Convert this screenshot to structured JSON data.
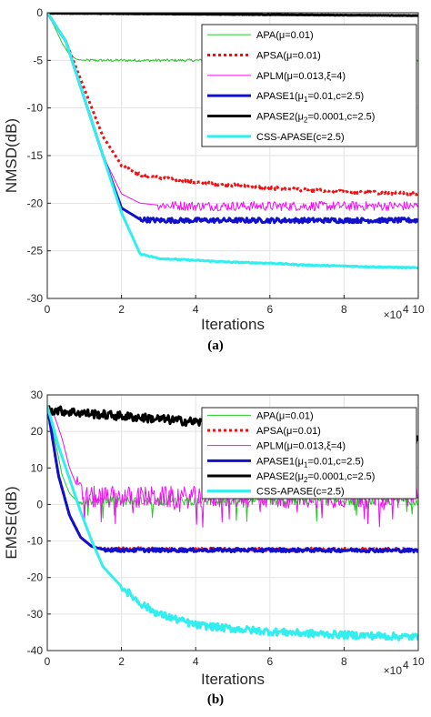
{
  "chart_data": [
    {
      "type": "line",
      "caption": "(a)",
      "xlabel": "Iterations",
      "ylabel": "NMSD(dB)",
      "x_multiplier": "×10",
      "x_multiplier_exp": "4",
      "xlim": [
        0,
        10
      ],
      "ylim": [
        -30,
        0
      ],
      "xticks": [
        "0",
        "2",
        "4",
        "6",
        "8",
        "10"
      ],
      "yticks": [
        "0",
        "-5",
        "-10",
        "-15",
        "-20",
        "-25",
        "-30"
      ],
      "grid": true,
      "legend_position": "top-right",
      "series": [
        {
          "name": "APA(μ=0.01)",
          "legend": {
            "pre": "APA(μ=0.01)"
          },
          "color": "#22cc22",
          "style": "solid",
          "width": 1,
          "x": [
            0,
            0.2,
            0.4,
            0.6,
            0.8,
            1.0,
            2,
            4,
            6,
            8,
            10
          ],
          "y": [
            0,
            -1.5,
            -3.2,
            -4.4,
            -4.9,
            -5.0,
            -5.0,
            -5.0,
            -5.0,
            -5.0,
            -5.0
          ]
        },
        {
          "name": "APSA(μ=0.01)",
          "legend": {
            "pre": "APSA(μ=0.01)"
          },
          "color": "#ee1111",
          "style": "dotted",
          "width": 3,
          "x": [
            0,
            0.5,
            1.0,
            1.5,
            2.0,
            2.5,
            3,
            4,
            5,
            6,
            7,
            8,
            9,
            10
          ],
          "y": [
            0,
            -3,
            -8,
            -13,
            -16,
            -17,
            -17.3,
            -17.8,
            -18.1,
            -18.4,
            -18.6,
            -18.8,
            -18.9,
            -19.0
          ]
        },
        {
          "name": "APLM(μ=0.013,ξ=4)",
          "legend": {
            "pre": "APLM(μ=0.013,ξ=4)"
          },
          "color": "#ee11ee",
          "style": "solid",
          "width": 1,
          "x": [
            0,
            0.5,
            1.0,
            1.5,
            2.0,
            2.5,
            3,
            4,
            6,
            8,
            10
          ],
          "y": [
            0,
            -3,
            -9,
            -15,
            -19,
            -20,
            -20.2,
            -20.3,
            -20.3,
            -20.3,
            -20.3
          ]
        },
        {
          "name": "APASE1(μ1=0.01,c=2.5)",
          "legend": {
            "pre": "APASE1(μ",
            "sub": "1",
            "post": "=0.01,c=2.5)"
          },
          "color": "#1111cc",
          "style": "solid",
          "width": 3,
          "x": [
            0,
            0.5,
            1.0,
            1.5,
            2.0,
            2.5,
            3,
            4,
            6,
            8,
            10
          ],
          "y": [
            0,
            -3,
            -9,
            -15,
            -20.5,
            -21.7,
            -21.8,
            -21.8,
            -21.8,
            -21.8,
            -21.8
          ]
        },
        {
          "name": "APASE2(μ2=0.0001,c=2.5)",
          "legend": {
            "pre": "APASE2(μ",
            "sub": "2",
            "post": "=0.0001,c=2.5)"
          },
          "color": "#000000",
          "style": "solid",
          "width": 3,
          "x": [
            0,
            2,
            4,
            6,
            8,
            10
          ],
          "y": [
            -0.05,
            -0.1,
            -0.15,
            -0.2,
            -0.25,
            -0.3
          ]
        },
        {
          "name": "CSS-APASE(c=2.5)",
          "legend": {
            "pre": "CSS-APASE(c=2.5)"
          },
          "color": "#33eeee",
          "style": "solid",
          "width": 3,
          "x": [
            0,
            0.5,
            1.0,
            1.5,
            2.0,
            2.5,
            3,
            4,
            5,
            6,
            7,
            8,
            9,
            10
          ],
          "y": [
            0,
            -3,
            -9,
            -15,
            -21,
            -25.3,
            -25.8,
            -26.0,
            -26.2,
            -26.3,
            -26.5,
            -26.6,
            -26.7,
            -26.8
          ]
        }
      ]
    },
    {
      "type": "line",
      "caption": "(b)",
      "xlabel": "Iterations",
      "ylabel": "EMSE(dB)",
      "x_multiplier": "×10",
      "x_multiplier_exp": "4",
      "xlim": [
        0,
        10
      ],
      "ylim": [
        -40,
        30
      ],
      "xticks": [
        "0",
        "2",
        "4",
        "6",
        "8",
        "10"
      ],
      "yticks": [
        "30",
        "20",
        "10",
        "0",
        "-10",
        "-20",
        "-30",
        "-40"
      ],
      "grid": true,
      "legend_position": "top-right",
      "series": [
        {
          "name": "APA(μ=0.01)",
          "legend": {
            "pre": "APA(μ=0.01)"
          },
          "color": "#22cc22",
          "style": "solid",
          "width": 1,
          "x": [
            0,
            0.2,
            0.4,
            0.6,
            0.8,
            1.0,
            2,
            4,
            6,
            8,
            10
          ],
          "y": [
            27,
            18,
            8,
            3,
            1,
            1,
            1,
            1,
            1,
            1,
            1
          ]
        },
        {
          "name": "APSA(μ=0.01)",
          "legend": {
            "pre": "APSA(μ=0.01)"
          },
          "color": "#ee1111",
          "style": "dotted",
          "width": 3,
          "x": [
            0,
            0.3,
            0.6,
            0.9,
            1.2,
            1.5,
            2,
            4,
            6,
            8,
            10
          ],
          "y": [
            27,
            8,
            -3,
            -9,
            -11.5,
            -12,
            -12.2,
            -12.3,
            -12.3,
            -12.3,
            -12.3
          ]
        },
        {
          "name": "APLM(μ=0.013,ξ=4)",
          "legend": {
            "pre": "APLM(μ=0.013,ξ=4)"
          },
          "color": "#ee11ee",
          "style": "solid",
          "width": 1,
          "x": [
            0,
            0.2,
            0.4,
            0.6,
            0.8,
            1.0,
            2,
            4,
            6,
            8,
            10
          ],
          "y": [
            27,
            24,
            18,
            10,
            5,
            2,
            2,
            2,
            2,
            2,
            2
          ]
        },
        {
          "name": "APASE1(μ1=0.01,c=2.5)",
          "legend": {
            "pre": "APASE1(μ",
            "sub": "1",
            "post": "=0.01,c=2.5)"
          },
          "color": "#1111cc",
          "style": "solid",
          "width": 3,
          "x": [
            0,
            0.3,
            0.6,
            0.9,
            1.2,
            1.5,
            2,
            4,
            6,
            8,
            10
          ],
          "y": [
            27,
            8,
            -3,
            -9,
            -11.5,
            -12.3,
            -12.5,
            -12.5,
            -12.5,
            -12.5,
            -12.6
          ]
        },
        {
          "name": "APASE2(μ2=0.0001,c=2.5)",
          "legend": {
            "pre": "APASE2(μ",
            "sub": "2",
            "post": "=0.0001,c=2.5)"
          },
          "color": "#000000",
          "style": "solid",
          "width": 3,
          "x": [
            0,
            1,
            2,
            3,
            4,
            5,
            6,
            7,
            8,
            9,
            10
          ],
          "y": [
            26,
            25,
            24.2,
            23.4,
            22.6,
            21.8,
            21.0,
            20.0,
            19.2,
            18.3,
            17.5
          ]
        },
        {
          "name": "CSS-APASE(c=2.5)",
          "legend": {
            "pre": "CSS-APASE(c=2.5)"
          },
          "color": "#33eeee",
          "style": "solid",
          "width": 3,
          "x": [
            0,
            0.3,
            0.6,
            0.9,
            1.2,
            1.5,
            2,
            2.5,
            3,
            4,
            5,
            6,
            7,
            8,
            9,
            10
          ],
          "y": [
            27,
            16,
            7,
            -2,
            -10,
            -17,
            -22.5,
            -27,
            -30,
            -33,
            -34,
            -34.8,
            -35.3,
            -35.7,
            -36,
            -36.3
          ]
        }
      ]
    }
  ]
}
